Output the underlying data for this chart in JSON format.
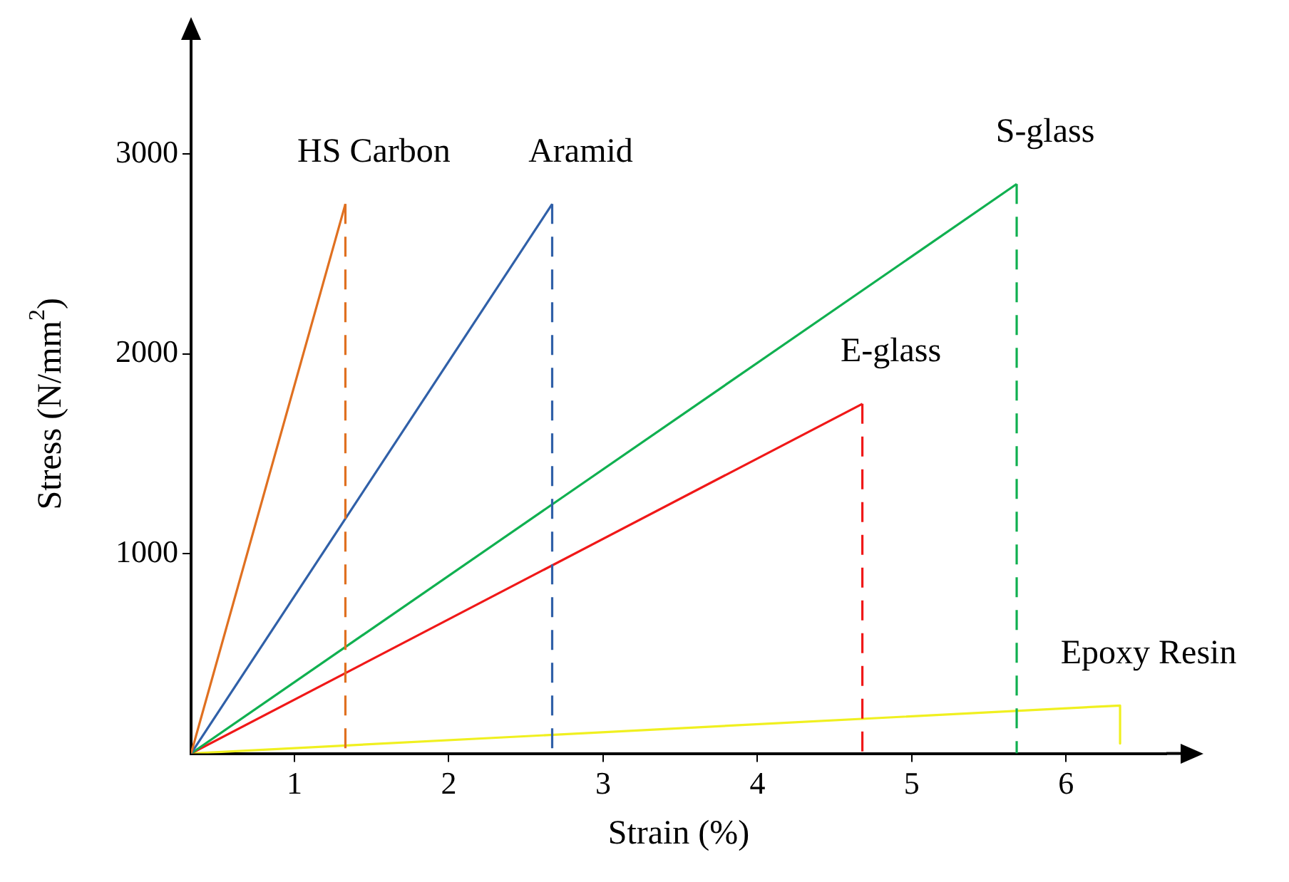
{
  "chart_data": {
    "type": "line",
    "xlabel": "Strain (%)",
    "ylabel": "Stress (N/mm$^{2}$)",
    "xlim": [
      0.33,
      6.65
    ],
    "ylim": [
      0,
      3500
    ],
    "xticks": [
      1,
      2,
      3,
      4,
      5,
      6
    ],
    "yticks": [
      1000,
      2000,
      3000
    ],
    "grid": false,
    "legend": false,
    "marker": "none",
    "series": [
      {
        "name": "HS Carbon",
        "color": "#e07020",
        "x": [
          0.33,
          1.33
        ],
        "values": [
          0,
          2750
        ],
        "line_style": "solid"
      },
      {
        "color": "#e07020",
        "x": [
          1.33,
          1.33
        ],
        "values": [
          2750,
          0
        ],
        "line_style": "dashed"
      },
      {
        "name": "Aramid",
        "color": "#3060a8",
        "x": [
          0.33,
          2.67
        ],
        "values": [
          0,
          2750
        ],
        "line_style": "solid"
      },
      {
        "color": "#3060a8",
        "x": [
          2.67,
          2.67
        ],
        "values": [
          2750,
          0
        ],
        "line_style": "dashed"
      },
      {
        "name": "S-glass",
        "color": "#10b050",
        "x": [
          0.33,
          5.68
        ],
        "values": [
          0,
          2850
        ],
        "line_style": "solid"
      },
      {
        "color": "#10b050",
        "x": [
          5.68,
          5.68
        ],
        "values": [
          2850,
          0
        ],
        "line_style": "dashed"
      },
      {
        "name": "E-glass",
        "color": "#f01818",
        "x": [
          0.33,
          4.68
        ],
        "values": [
          0,
          1750
        ],
        "line_style": "solid"
      },
      {
        "color": "#f01818",
        "x": [
          4.68,
          4.68
        ],
        "values": [
          1750,
          0
        ],
        "line_style": "dashed"
      },
      {
        "name": "Epoxy Resin",
        "color": "#f0f020",
        "x": [
          0.33,
          6.35,
          6.35
        ],
        "values": [
          0,
          240,
          50
        ],
        "line_style": "solid"
      }
    ]
  }
}
